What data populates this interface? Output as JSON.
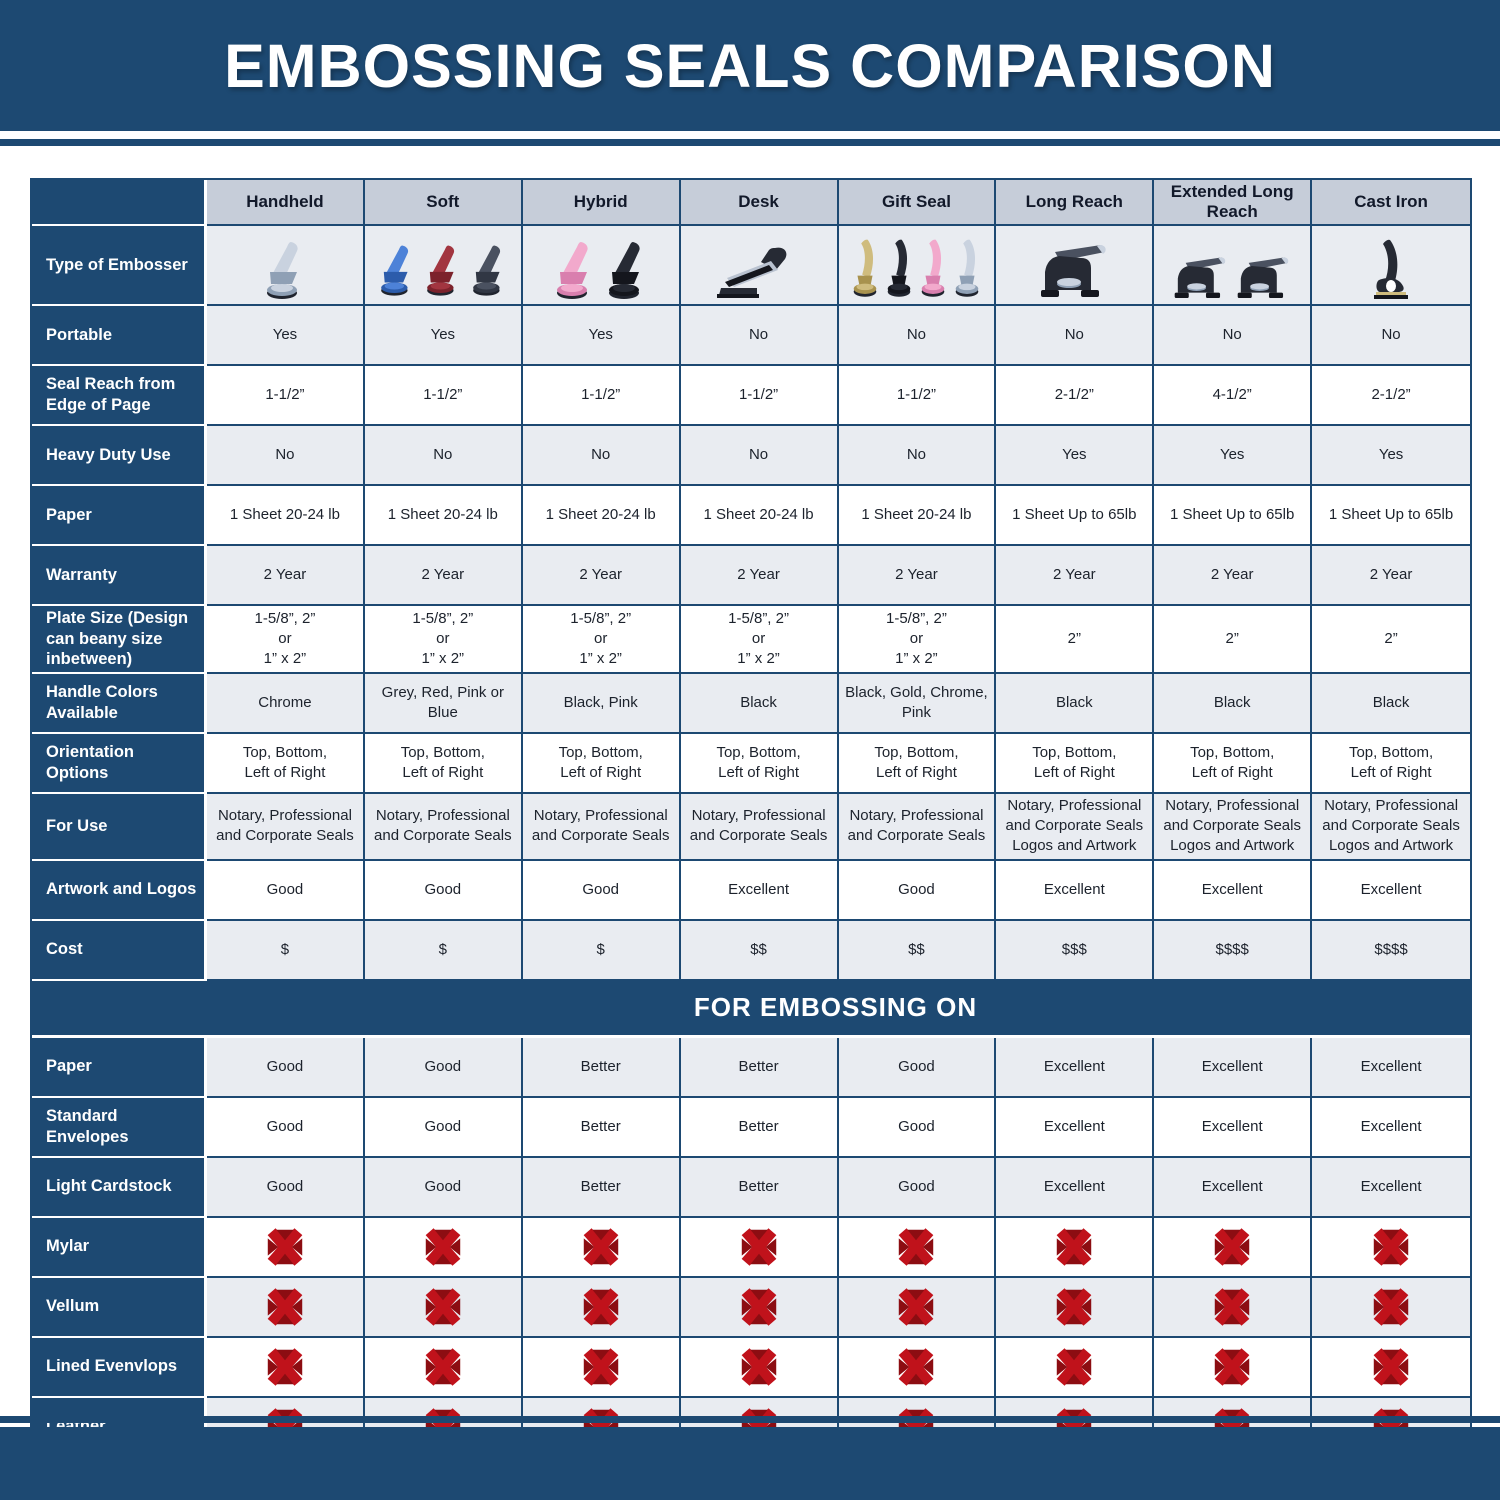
{
  "page": {
    "title": "EMBOSSING SEALS COMPARISON",
    "section_header": "FOR EMBOSSING ON"
  },
  "colors": {
    "navy": "#1d4972",
    "header_gray": "#c6cdd9",
    "row_light": "#e9ecf1",
    "row_white": "#ffffff",
    "x_red": "#c0121b",
    "x_dark_red": "#8c0d12"
  },
  "palette": {
    "chrome": {
      "main": "#c9d2df",
      "dark": "#8fa0b5"
    },
    "blue": {
      "main": "#4d82d8",
      "dark": "#2c5cab"
    },
    "red": {
      "main": "#a23540",
      "dark": "#7c222c"
    },
    "slate": {
      "main": "#4a5160",
      "dark": "#313744"
    },
    "pink": {
      "main": "#f2a9cc",
      "dark": "#d97fae"
    },
    "black": {
      "main": "#262a34",
      "dark": "#14161d"
    },
    "gold": {
      "main": "#cfbc7e",
      "dark": "#a8924e"
    }
  },
  "chart_data": {
    "type": "table",
    "title": "EMBOSSING SEALS COMPARISON",
    "columns": [
      "Handheld",
      "Soft",
      "Hybrid",
      "Desk",
      "Gift Seal",
      "Long Reach",
      "Extended Long Reach",
      "Cast Iron"
    ],
    "embosser_row": {
      "label": "Type of Embosser",
      "items": [
        {
          "icon": "handheld-embosser-icon",
          "style": "clamp",
          "colors": [
            "chrome"
          ]
        },
        {
          "icon": "soft-embosser-icon",
          "style": "clamp",
          "colors": [
            "blue",
            "red",
            "slate"
          ]
        },
        {
          "icon": "hybrid-embosser-icon",
          "style": "clamp",
          "colors": [
            "pink",
            "black"
          ]
        },
        {
          "icon": "desk-embosser-icon",
          "style": "desk",
          "colors": [
            "black"
          ]
        },
        {
          "icon": "gift-seal-embosser-icon",
          "style": "slim",
          "colors": [
            "gold",
            "black",
            "pink",
            "chrome"
          ]
        },
        {
          "icon": "long-reach-embosser-icon",
          "style": "press",
          "colors": [
            "black"
          ]
        },
        {
          "icon": "extended-long-reach-embosser-icon",
          "style": "press",
          "colors": [
            "black",
            "black"
          ]
        },
        {
          "icon": "cast-iron-embosser-icon",
          "style": "castiron",
          "colors": [
            "black"
          ]
        }
      ]
    },
    "spec_rows": [
      {
        "label": "Portable",
        "values": [
          "Yes",
          "Yes",
          "Yes",
          "No",
          "No",
          "No",
          "No",
          "No"
        ]
      },
      {
        "label": "Seal Reach from Edge of Page",
        "values": [
          "1-1/2”",
          "1-1/2”",
          "1-1/2”",
          "1-1/2”",
          "1-1/2”",
          "2-1/2”",
          "4-1/2”",
          "2-1/2”"
        ]
      },
      {
        "label": "Heavy Duty Use",
        "values": [
          "No",
          "No",
          "No",
          "No",
          "No",
          "Yes",
          "Yes",
          "Yes"
        ]
      },
      {
        "label": "Paper",
        "values": [
          "1 Sheet 20-24 lb",
          "1 Sheet 20-24 lb",
          "1 Sheet 20-24 lb",
          "1 Sheet 20-24 lb",
          "1 Sheet 20-24 lb",
          "1 Sheet Up to 65lb",
          "1 Sheet Up to 65lb",
          "1 Sheet Up to 65lb"
        ]
      },
      {
        "label": "Warranty",
        "values": [
          "2 Year",
          "2 Year",
          "2 Year",
          "2 Year",
          "2 Year",
          "2 Year",
          "2 Year",
          "2 Year"
        ]
      },
      {
        "label": "Plate Size (Design can beany size inbetween)",
        "values": [
          "1-5/8”, 2”\nor\n1” x 2”",
          "1-5/8”, 2”\nor\n1” x 2”",
          "1-5/8”, 2”\nor\n1” x 2”",
          "1-5/8”, 2”\nor\n1” x 2”",
          "1-5/8”, 2”\nor\n1” x 2”",
          "2”",
          "2”",
          "2”"
        ]
      },
      {
        "label": "Handle Colors Available",
        "values": [
          "Chrome",
          "Grey, Red, Pink or Blue",
          "Black, Pink",
          "Black",
          "Black, Gold, Chrome, Pink",
          "Black",
          "Black",
          "Black"
        ]
      },
      {
        "label": "Orientation Options",
        "values": [
          "Top, Bottom,\nLeft of Right",
          "Top, Bottom,\nLeft of Right",
          "Top, Bottom,\nLeft of Right",
          "Top, Bottom,\nLeft of Right",
          "Top, Bottom,\nLeft of Right",
          "Top, Bottom,\nLeft of Right",
          "Top, Bottom,\nLeft of Right",
          "Top, Bottom,\nLeft of Right"
        ]
      },
      {
        "label": "For Use",
        "values": [
          "Notary, Professional\nand Corporate Seals",
          "Notary, Professional\nand Corporate Seals",
          "Notary, Professional\nand Corporate Seals",
          "Notary, Professional\nand Corporate Seals",
          "Notary, Professional\nand Corporate Seals",
          "Notary, Professional\nand Corporate Seals\nLogos and Artwork",
          "Notary, Professional\nand Corporate Seals\nLogos and Artwork",
          "Notary, Professional\nand Corporate Seals\nLogos and Artwork"
        ]
      },
      {
        "label": "Artwork and Logos",
        "values": [
          "Good",
          "Good",
          "Good",
          "Excellent",
          "Good",
          "Excellent",
          "Excellent",
          "Excellent"
        ]
      },
      {
        "label": "Cost",
        "values": [
          "$",
          "$",
          "$",
          "$$",
          "$$",
          "$$$",
          "$$$$",
          "$$$$"
        ]
      }
    ],
    "embossing_rows": [
      {
        "label": "Paper",
        "values": [
          "Good",
          "Good",
          "Better",
          "Better",
          "Good",
          "Excellent",
          "Excellent",
          "Excellent"
        ]
      },
      {
        "label": "Standard Envelopes",
        "values": [
          "Good",
          "Good",
          "Better",
          "Better",
          "Good",
          "Excellent",
          "Excellent",
          "Excellent"
        ]
      },
      {
        "label": "Light Cardstock",
        "values": [
          "Good",
          "Good",
          "Better",
          "Better",
          "Good",
          "Excellent",
          "Excellent",
          "Excellent"
        ]
      },
      {
        "label": "Mylar",
        "icon": "red-x-icon"
      },
      {
        "label": "Vellum",
        "icon": "red-x-icon"
      },
      {
        "label": "Lined Evenvlops",
        "icon": "red-x-icon"
      },
      {
        "label": "Leather",
        "icon": "red-x-icon"
      }
    ]
  }
}
